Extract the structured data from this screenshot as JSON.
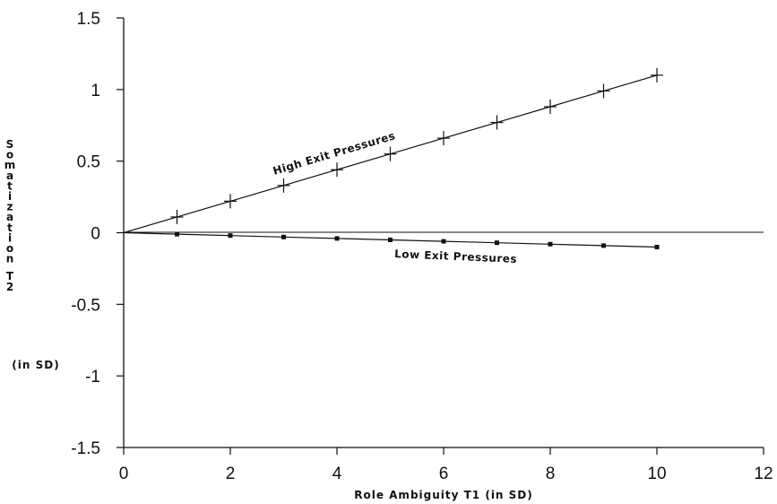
{
  "chart_data": {
    "type": "line",
    "xlabel": "Role Ambiguity T1  (in SD)",
    "ylabel": "Somatization T2",
    "ylabel_unit": "(in SD)",
    "xlim": [
      0,
      12
    ],
    "ylim": [
      -1.5,
      1.5
    ],
    "x_ticks": [
      0,
      2,
      4,
      6,
      8,
      10,
      12
    ],
    "y_ticks": [
      1.5,
      1,
      0.5,
      0,
      -0.5,
      -1,
      -1.5
    ],
    "x_tick_labels": [
      "0",
      "2",
      "4",
      "6",
      "8",
      "10",
      "12"
    ],
    "y_tick_labels": [
      "1.5",
      "1",
      "0.5",
      "0",
      "-0.5",
      "-1",
      "-1.5"
    ],
    "grid": false,
    "series": [
      {
        "name": "High Exit Pressures",
        "marker": "plus",
        "x": [
          0,
          1,
          2,
          3,
          4,
          5,
          6,
          7,
          8,
          9,
          10
        ],
        "y": [
          0,
          0.11,
          0.22,
          0.33,
          0.44,
          0.55,
          0.66,
          0.77,
          0.88,
          0.99,
          1.1
        ]
      },
      {
        "name": "Low Exit Pressures",
        "marker": "square",
        "x": [
          0,
          1,
          2,
          3,
          4,
          5,
          6,
          7,
          8,
          9,
          10
        ],
        "y": [
          0,
          -0.01,
          -0.02,
          -0.03,
          -0.04,
          -0.05,
          -0.06,
          -0.07,
          -0.08,
          -0.09,
          -0.1
        ]
      }
    ]
  }
}
